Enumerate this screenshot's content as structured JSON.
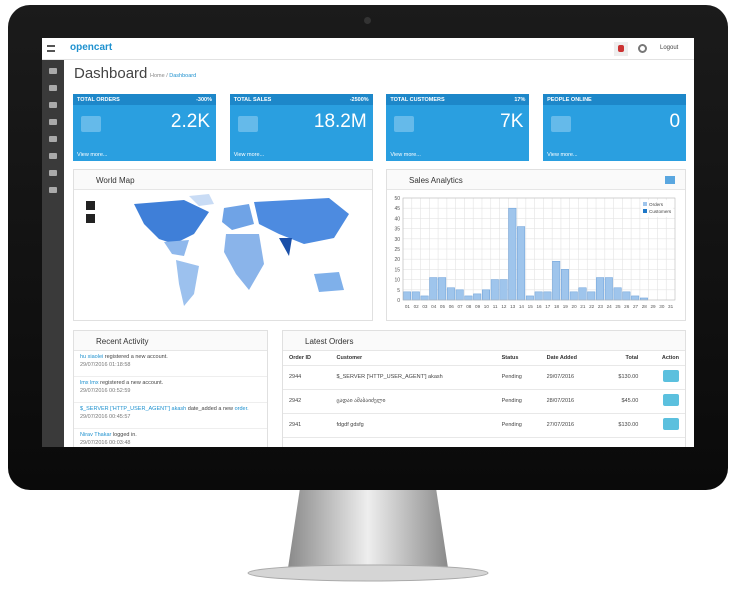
{
  "header": {
    "logo": "opencart",
    "logout": "Logout"
  },
  "page": {
    "title": "Dashboard",
    "breadcrumb": [
      "Home",
      "Dashboard"
    ]
  },
  "tiles": [
    {
      "label": "TOTAL ORDERS",
      "change": "-300%",
      "value": "2.2K",
      "link": "View more..."
    },
    {
      "label": "TOTAL SALES",
      "change": "-2500%",
      "value": "18.2M",
      "link": "View more..."
    },
    {
      "label": "TOTAL CUSTOMERS",
      "change": "17%",
      "value": "7K",
      "link": "View more..."
    },
    {
      "label": "PEOPLE ONLINE",
      "value": "0",
      "link": "View more..."
    }
  ],
  "world_map": {
    "title": "World Map"
  },
  "sales_analytics": {
    "title": "Sales Analytics",
    "chart_data": {
      "type": "bar",
      "categories": [
        "01",
        "02",
        "03",
        "04",
        "05",
        "06",
        "07",
        "08",
        "09",
        "10",
        "11",
        "12",
        "13",
        "14",
        "15",
        "16",
        "17",
        "18",
        "19",
        "20",
        "21",
        "22",
        "23",
        "24",
        "25",
        "26",
        "27",
        "28",
        "29",
        "30",
        "31"
      ],
      "series": [
        {
          "name": "Orders",
          "color": "#9fc5ec",
          "values": [
            4,
            4,
            2,
            11,
            11,
            6,
            5,
            2,
            3,
            5,
            10,
            10,
            45,
            36,
            2,
            4,
            4,
            19,
            15,
            4,
            6,
            4,
            11,
            11,
            6,
            4,
            2,
            1,
            0,
            0,
            0
          ]
        },
        {
          "name": "Customers",
          "color": "#1e78c8",
          "values": [
            0,
            0,
            0,
            0,
            0,
            0,
            0,
            0,
            0,
            0,
            0,
            0,
            0,
            0,
            0,
            0,
            0,
            0,
            0,
            0,
            0,
            0,
            0,
            0,
            0,
            0,
            0,
            0,
            0,
            0,
            0
          ]
        }
      ],
      "ylim": [
        0,
        50
      ],
      "yticks": [
        0,
        5,
        10,
        15,
        20,
        25,
        30,
        35,
        40,
        45,
        50
      ],
      "grid": true,
      "legend": "top-right"
    }
  },
  "recent_activity": {
    "title": "Recent Activity",
    "items": [
      {
        "user": "hu xiaolei",
        "text": "registered a new account.",
        "date": "29/07/2016 01:18:58"
      },
      {
        "user": "lmx lmx",
        "text": "registered a new account.",
        "date": "29/07/2016 00:52:59"
      },
      {
        "user": "$_SERVER ['HTTP_USER_AGENT'] akash",
        "text": "date_added a new",
        "link": "order.",
        "date": "29/07/2016 00:45:57"
      },
      {
        "user": "Nirav Thakar",
        "text": "logged in.",
        "date": "29/07/2016 00:03:48"
      }
    ]
  },
  "latest_orders": {
    "title": "Latest Orders",
    "columns": [
      "Order ID",
      "Customer",
      "Status",
      "Date Added",
      "Total",
      "Action"
    ],
    "rows": [
      [
        "2944",
        "$_SERVER ['HTTP_USER_AGENT'] akash",
        "Pending",
        "29/07/2016",
        "$130.00"
      ],
      [
        "2942",
        "ცადაი ამაბაიძელი",
        "Pending",
        "28/07/2016",
        "$45.00"
      ],
      [
        "2941",
        "fdgdf gdsfg",
        "Pending",
        "27/07/2016",
        "$130.00"
      ]
    ]
  }
}
